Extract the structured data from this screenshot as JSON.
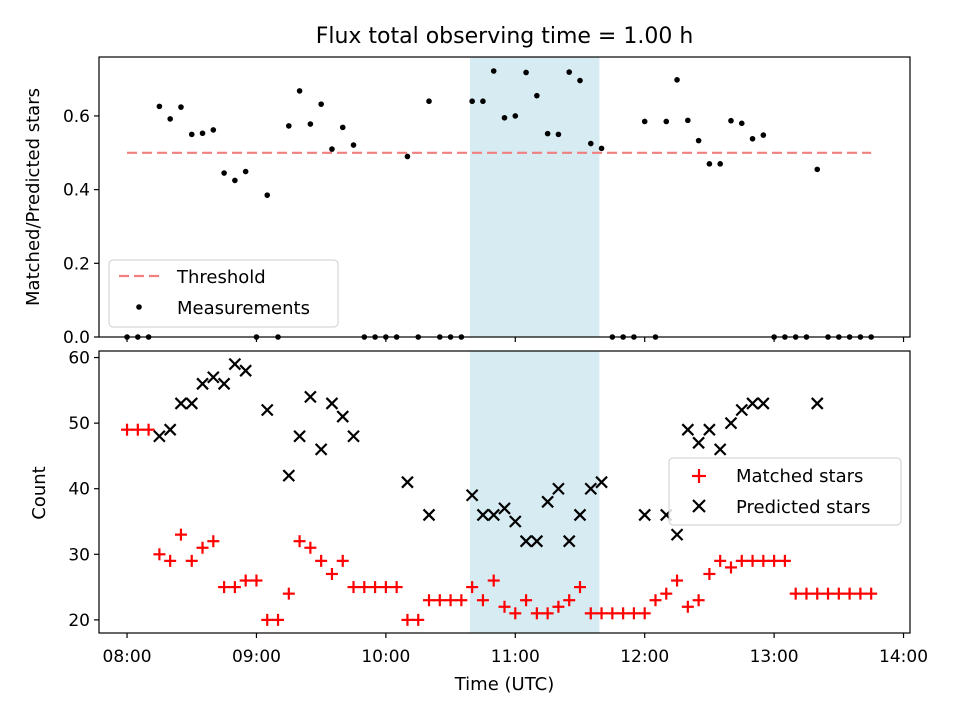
{
  "chart_data": [
    {
      "type": "scatter",
      "title": "Flux total observing time = 1.00 h",
      "xlabel": "",
      "ylabel": "Matched/Predicted stars",
      "ylim": [
        0,
        0.76
      ],
      "yticks": [
        "0.0",
        "0.2",
        "0.4",
        "0.6"
      ],
      "highlight_span": {
        "from_min": 639,
        "to_min": 699,
        "color": "#add8e6"
      },
      "threshold": {
        "name": "Threshold",
        "value": 0.5,
        "x_from_min": 480,
        "x_to_min": 825,
        "color": "#f08080"
      },
      "series": [
        {
          "name": "Measurements",
          "color": "#000000",
          "x_min": [
            480,
            485,
            490,
            495,
            500,
            505,
            510,
            515,
            520,
            525,
            530,
            535,
            540,
            545,
            550,
            555,
            560,
            565,
            570,
            575,
            580,
            585,
            590,
            595,
            600,
            605,
            610,
            615,
            620,
            625,
            630,
            635,
            640,
            645,
            650,
            655,
            660,
            665,
            670,
            675,
            680,
            685,
            690,
            695,
            700,
            705,
            710,
            715,
            720,
            725,
            730,
            735,
            740,
            745,
            750,
            755,
            760,
            765,
            770,
            775,
            780,
            785,
            790,
            795,
            800,
            805,
            810,
            815,
            820,
            825
          ],
          "values": [
            0,
            0,
            0,
            0.626,
            0.592,
            0.624,
            0.55,
            0.553,
            0.562,
            0.445,
            0.425,
            0.449,
            0,
            0.385,
            0,
            0.573,
            0.668,
            0.578,
            0.632,
            0.51,
            0.569,
            0.521,
            0,
            0,
            0,
            0,
            0.49,
            0,
            0.64,
            0,
            0,
            0,
            0.64,
            0.64,
            0.722,
            0.595,
            0.6,
            0.718,
            0.655,
            0.552,
            0.55,
            0.719,
            0.696,
            0.525,
            0.512,
            0,
            0,
            0,
            0.585,
            0,
            0.585,
            0.698,
            0.588,
            0.533,
            0.47,
            0.47,
            0.587,
            0.58,
            0.538,
            0.548,
            0,
            0,
            0,
            0,
            0.455,
            0,
            0,
            0,
            0,
            0
          ]
        }
      ],
      "legend": "lower-left"
    },
    {
      "type": "scatter",
      "title": "",
      "xlabel": "Time (UTC)",
      "ylabel": "Count",
      "ylim": [
        18,
        61
      ],
      "yticks": [
        "20",
        "30",
        "40",
        "50",
        "60"
      ],
      "xticks": [
        "08:00",
        "09:00",
        "10:00",
        "11:00",
        "12:00",
        "13:00",
        "14:00"
      ],
      "xlim_min": [
        467,
        843
      ],
      "highlight_span": {
        "from_min": 639,
        "to_min": 699,
        "color": "#add8e6"
      },
      "series": [
        {
          "name": "Matched stars",
          "marker": "+",
          "color": "#ff0000",
          "x_min": [
            480,
            485,
            490,
            495,
            500,
            505,
            510,
            515,
            520,
            525,
            530,
            535,
            540,
            545,
            550,
            555,
            560,
            565,
            570,
            575,
            580,
            585,
            590,
            595,
            600,
            605,
            610,
            615,
            620,
            625,
            630,
            635,
            640,
            645,
            650,
            655,
            660,
            665,
            670,
            675,
            680,
            685,
            690,
            695,
            700,
            705,
            710,
            715,
            720,
            725,
            730,
            735,
            740,
            745,
            750,
            755,
            760,
            765,
            770,
            775,
            780,
            785,
            790,
            795,
            800,
            805,
            810,
            815,
            820,
            825
          ],
          "values": [
            49,
            49,
            49,
            30,
            29,
            33,
            29,
            31,
            32,
            25,
            25,
            26,
            26,
            20,
            20,
            24,
            32,
            31,
            29,
            27,
            29,
            25,
            25,
            25,
            25,
            25,
            20,
            20,
            23,
            23,
            23,
            23,
            25,
            23,
            26,
            22,
            21,
            23,
            21,
            21,
            22,
            23,
            25,
            21,
            21,
            21,
            21,
            21,
            21,
            23,
            24,
            26,
            22,
            23,
            27,
            29,
            28,
            29,
            29,
            29,
            29,
            29,
            24,
            24,
            24,
            24,
            24,
            24,
            24,
            24
          ]
        },
        {
          "name": "Predicted stars",
          "marker": "x",
          "color": "#000000",
          "x_min": [
            495,
            500,
            505,
            510,
            515,
            520,
            525,
            530,
            535,
            545,
            555,
            560,
            565,
            570,
            575,
            580,
            585,
            610,
            620,
            640,
            645,
            650,
            655,
            660,
            665,
            670,
            675,
            680,
            685,
            690,
            695,
            700,
            720,
            730,
            735,
            740,
            745,
            750,
            755,
            760,
            765,
            770,
            775,
            800
          ],
          "values": [
            48,
            49,
            53,
            53,
            56,
            57,
            56,
            59,
            58,
            52,
            42,
            48,
            54,
            46,
            53,
            51,
            48,
            41,
            36,
            39,
            36,
            36,
            37,
            35,
            32,
            32,
            38,
            40,
            32,
            36,
            40,
            41,
            36,
            36,
            33,
            49,
            47,
            49,
            46,
            50,
            52,
            53,
            53,
            53
          ]
        }
      ],
      "legend": "center-right"
    }
  ]
}
